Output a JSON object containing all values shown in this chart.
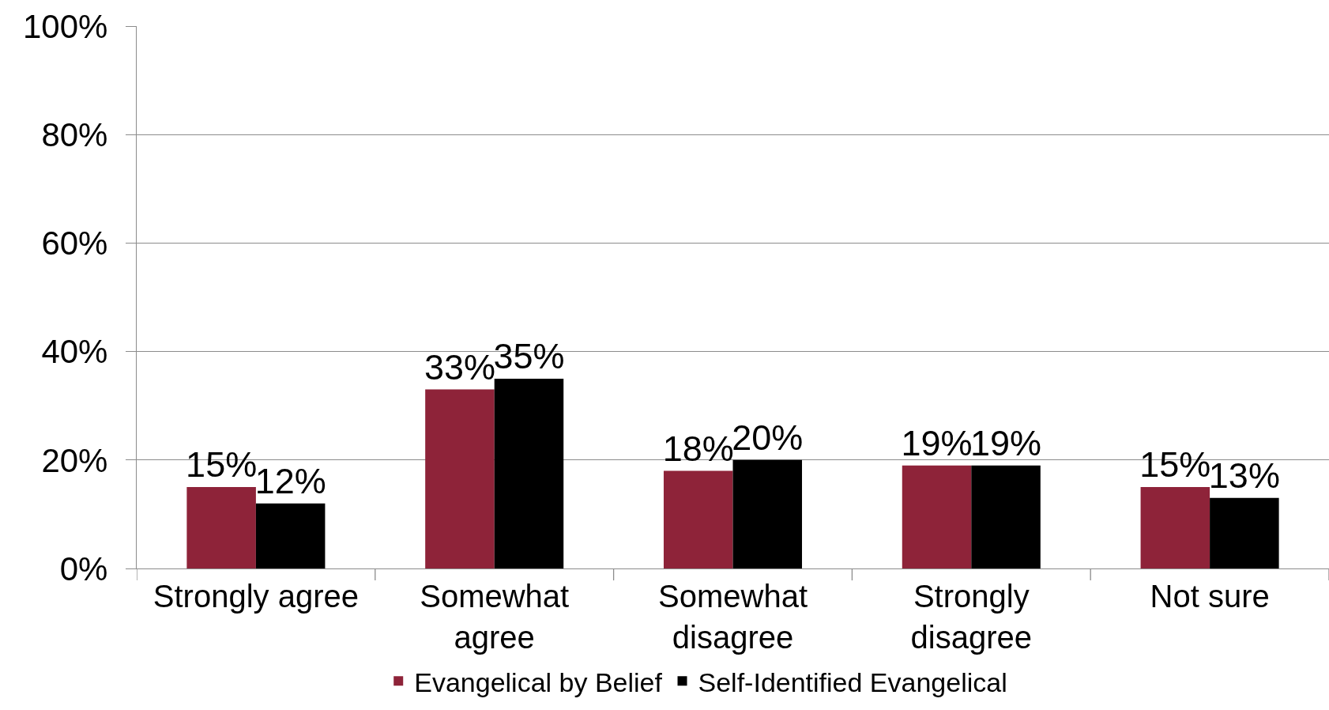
{
  "chart_data": {
    "type": "bar",
    "categories": [
      "Strongly agree",
      "Somewhat\nagree",
      "Somewhat\ndisagree",
      "Strongly\ndisagree",
      "Not sure"
    ],
    "series": [
      {
        "name": "Evangelical by Belief",
        "color": "#8e2339",
        "values": [
          15,
          33,
          18,
          19,
          15
        ],
        "value_labels": [
          "15%",
          "33%",
          "18%",
          "19%",
          "15%"
        ]
      },
      {
        "name": "Self-Identified Evangelical",
        "color": "#000000",
        "values": [
          12,
          35,
          20,
          19,
          13
        ],
        "value_labels": [
          "12%",
          "35%",
          "20%",
          "19%",
          "13%"
        ]
      }
    ],
    "ylim": [
      0,
      100
    ],
    "yticks": [
      {
        "value": 0,
        "label": "0%"
      },
      {
        "value": 20,
        "label": "20%"
      },
      {
        "value": 40,
        "label": "40%"
      },
      {
        "value": 60,
        "label": "60%"
      },
      {
        "value": 80,
        "label": "80%"
      },
      {
        "value": 100,
        "label": "100%"
      }
    ],
    "grid": "y",
    "legend": "bottom"
  }
}
